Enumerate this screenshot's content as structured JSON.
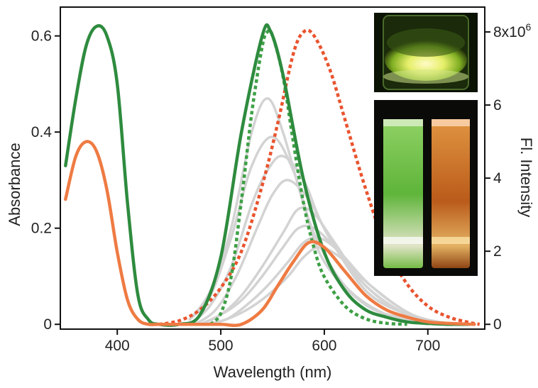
{
  "chart_data": {
    "type": "line",
    "title": "",
    "xlabel": "Wavelength (nm)",
    "ylabel_left": "Absorbance",
    "ylabel_right": "Fl. Intensity",
    "xlim": [
      345,
      755
    ],
    "ylim_left": [
      -0.01,
      0.66
    ],
    "ylim_right": [
      -0.1315,
      8.68
    ],
    "x_ticks": [
      400,
      500,
      600,
      700
    ],
    "y_ticks_left": [
      0,
      0.2,
      0.4,
      0.6
    ],
    "y_ticks_left_labels": [
      "0",
      "0.2",
      "0.4",
      "0.6"
    ],
    "y_ticks_right": [
      0,
      2,
      4,
      6,
      8
    ],
    "y_ticks_right_labels": [
      "0",
      "2",
      "4",
      "6",
      "8x10"
    ],
    "y_ticks_right_top_exponent": "6",
    "grid": false,
    "colors": {
      "green": "#2e8b3e",
      "orange": "#ee7b43",
      "gray": "#d3d3d3",
      "red_dotted": "#e9542f",
      "green_dotted": "#3ea046"
    },
    "series": [
      {
        "axis": "left",
        "style": "solid",
        "color": "gray",
        "emission": true,
        "x": [
          470,
          490,
          510,
          530,
          545,
          560,
          580,
          600,
          640,
          680,
          700
        ],
        "y": [
          0.01,
          0.07,
          0.2,
          0.4,
          0.47,
          0.4,
          0.25,
          0.13,
          0.04,
          0.01,
          0.0
        ]
      },
      {
        "axis": "left",
        "style": "solid",
        "color": "gray",
        "emission": true,
        "x": [
          470,
          490,
          510,
          530,
          550,
          570,
          590,
          620,
          660,
          700
        ],
        "y": [
          0.01,
          0.06,
          0.18,
          0.33,
          0.39,
          0.32,
          0.19,
          0.08,
          0.02,
          0.0
        ]
      },
      {
        "axis": "left",
        "style": "solid",
        "color": "gray",
        "emission": true,
        "x": [
          470,
          490,
          510,
          530,
          545,
          560,
          580,
          600,
          640,
          680,
          710
        ],
        "y": [
          0.0,
          0.04,
          0.12,
          0.25,
          0.32,
          0.35,
          0.3,
          0.2,
          0.07,
          0.02,
          0.0
        ]
      },
      {
        "axis": "left",
        "style": "solid",
        "color": "gray",
        "emission": true,
        "x": [
          475,
          495,
          515,
          535,
          550,
          565,
          585,
          605,
          640,
          680,
          710
        ],
        "y": [
          0.0,
          0.03,
          0.1,
          0.2,
          0.27,
          0.3,
          0.26,
          0.18,
          0.07,
          0.02,
          0.0
        ]
      },
      {
        "axis": "left",
        "style": "solid",
        "color": "gray",
        "emission": true,
        "x": [
          480,
          500,
          520,
          540,
          560,
          575,
          590,
          610,
          640,
          680,
          720
        ],
        "y": [
          0.0,
          0.02,
          0.06,
          0.12,
          0.19,
          0.24,
          0.23,
          0.17,
          0.08,
          0.02,
          0.0
        ]
      },
      {
        "axis": "left",
        "style": "solid",
        "color": "gray",
        "emission": true,
        "x": [
          480,
          500,
          520,
          540,
          560,
          575,
          590,
          610,
          640,
          680,
          720
        ],
        "y": [
          0.0,
          0.02,
          0.05,
          0.1,
          0.16,
          0.2,
          0.2,
          0.16,
          0.08,
          0.02,
          0.0
        ]
      },
      {
        "axis": "left",
        "style": "solid",
        "color": "gray",
        "emission": true,
        "x": [
          485,
          505,
          525,
          545,
          565,
          580,
          595,
          615,
          645,
          685,
          725
        ],
        "y": [
          0.0,
          0.01,
          0.04,
          0.08,
          0.13,
          0.17,
          0.18,
          0.15,
          0.08,
          0.02,
          0.0
        ]
      },
      {
        "axis": "left",
        "style": "solid",
        "color": "gray",
        "emission": true,
        "x": [
          485,
          505,
          525,
          545,
          565,
          580,
          595,
          615,
          645,
          685,
          725
        ],
        "y": [
          0.0,
          0.01,
          0.03,
          0.06,
          0.1,
          0.14,
          0.16,
          0.14,
          0.08,
          0.02,
          0.0
        ]
      },
      {
        "axis": "right",
        "style": "dotted",
        "color": "red_dotted",
        "emission": true,
        "x": [
          440,
          460,
          480,
          500,
          520,
          540,
          555,
          570,
          580,
          590,
          605,
          620,
          640,
          660,
          680,
          700,
          720,
          740,
          750
        ],
        "y": [
          0,
          0.1,
          0.4,
          1.0,
          2.0,
          3.8,
          5.5,
          7.4,
          8.0,
          7.9,
          7.0,
          5.6,
          3.7,
          2.1,
          1.1,
          0.5,
          0.2,
          0.05,
          0
        ]
      },
      {
        "axis": "right",
        "style": "dotted",
        "color": "green_dotted",
        "emission": true,
        "x": [
          490,
          500,
          510,
          520,
          530,
          540,
          545,
          550,
          560,
          570,
          580,
          590,
          600,
          620,
          640,
          660,
          680
        ],
        "y": [
          0,
          0.3,
          1.3,
          3.4,
          5.8,
          7.6,
          8.0,
          7.9,
          6.8,
          5.0,
          3.3,
          2.1,
          1.3,
          0.5,
          0.15,
          0.03,
          0
        ]
      },
      {
        "axis": "left",
        "style": "solid",
        "color": "green",
        "x": [
          350,
          360,
          370,
          380,
          390,
          400,
          410,
          420,
          430,
          440,
          460,
          480,
          500,
          520,
          540,
          548,
          560,
          580,
          600,
          620,
          640,
          660,
          680,
          700,
          720,
          740
        ],
        "y": [
          0.33,
          0.47,
          0.58,
          0.62,
          0.6,
          0.5,
          0.25,
          0.06,
          0.01,
          0.0,
          0.0,
          0.02,
          0.14,
          0.4,
          0.6,
          0.61,
          0.52,
          0.3,
          0.15,
          0.07,
          0.03,
          0.015,
          0.005,
          0.002,
          0.0,
          0.0
        ]
      },
      {
        "axis": "left",
        "style": "solid",
        "color": "orange",
        "x": [
          350,
          360,
          370,
          380,
          390,
          400,
          410,
          420,
          430,
          440,
          460,
          480,
          500,
          520,
          540,
          555,
          570,
          585,
          600,
          620,
          640,
          660,
          680,
          700,
          720,
          745
        ],
        "y": [
          0.26,
          0.35,
          0.38,
          0.36,
          0.28,
          0.15,
          0.05,
          0.01,
          0.0,
          0.0,
          0.0,
          0.0,
          0.0,
          0.0,
          0.03,
          0.08,
          0.13,
          0.17,
          0.16,
          0.11,
          0.06,
          0.03,
          0.015,
          0.005,
          0.002,
          0.0
        ]
      }
    ]
  },
  "photos": [
    {
      "name": "inset-photo-solid"
    },
    {
      "name": "inset-photo-vials"
    }
  ]
}
